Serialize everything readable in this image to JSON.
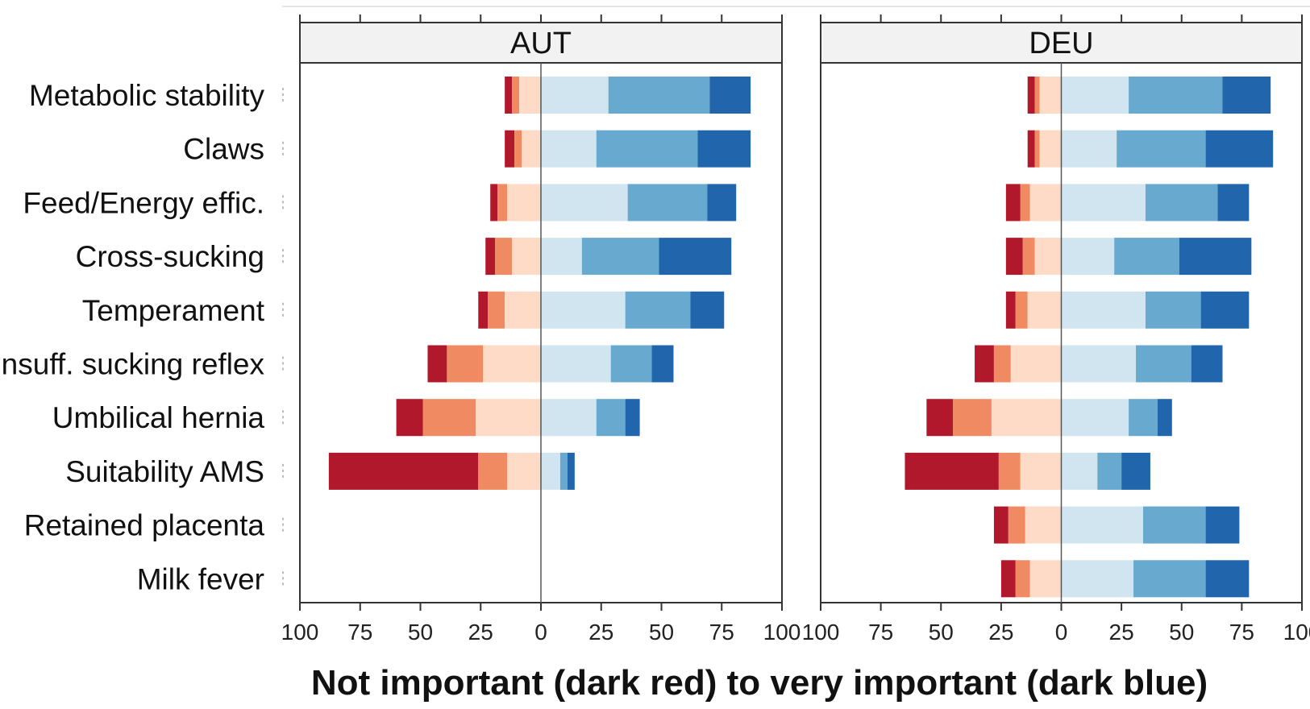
{
  "chart_data": {
    "type": "bar",
    "subtype": "diverging-stacked-likert",
    "xlabel": "Not important (dark red) to very important (dark blue)",
    "xlim": [
      -100,
      100
    ],
    "xticks": [
      -100,
      -75,
      -50,
      -25,
      0,
      25,
      50,
      75,
      100
    ],
    "xtick_labels": [
      "100",
      "75",
      "50",
      "25",
      "0",
      "25",
      "50",
      "75",
      "100"
    ],
    "categories": [
      "Metabolic stability",
      "Claws",
      "Feed/Energy effic.",
      "Cross-sucking",
      "Temperament",
      "Insuff. sucking reflex",
      "Umbilical hernia",
      "Suitability AMS",
      "Retained placenta",
      "Milk fever"
    ],
    "levels": [
      {
        "key": "l1",
        "color": "#b2182b"
      },
      {
        "key": "l2",
        "color": "#ef8a62"
      },
      {
        "key": "l3",
        "color": "#fddbc7"
      },
      {
        "key": "l4",
        "color": "#d1e5f0"
      },
      {
        "key": "l5",
        "color": "#67a9cf"
      },
      {
        "key": "l6",
        "color": "#2166ac"
      }
    ],
    "panels": [
      {
        "name": "AUT",
        "rows": [
          {
            "category": "Metabolic stability",
            "neg": [
              3,
              3,
              9
            ],
            "pos": [
              28,
              42,
              17
            ]
          },
          {
            "category": "Claws",
            "neg": [
              4,
              3,
              8
            ],
            "pos": [
              23,
              42,
              22
            ]
          },
          {
            "category": "Feed/Energy effic.",
            "neg": [
              3,
              4,
              14
            ],
            "pos": [
              36,
              33,
              12
            ]
          },
          {
            "category": "Cross-sucking",
            "neg": [
              4,
              7,
              12
            ],
            "pos": [
              17,
              32,
              30
            ]
          },
          {
            "category": "Temperament",
            "neg": [
              4,
              7,
              15
            ],
            "pos": [
              35,
              27,
              14
            ]
          },
          {
            "category": "Insuff. sucking reflex",
            "neg": [
              8,
              15,
              24
            ],
            "pos": [
              29,
              17,
              9
            ]
          },
          {
            "category": "Umbilical hernia",
            "neg": [
              11,
              22,
              27
            ],
            "pos": [
              23,
              12,
              6
            ]
          },
          {
            "category": "Suitability AMS",
            "neg": [
              62,
              12,
              14
            ],
            "pos": [
              8,
              3,
              3
            ]
          },
          {
            "category": "Retained placenta",
            "neg": [],
            "pos": []
          },
          {
            "category": "Milk fever",
            "neg": [],
            "pos": []
          }
        ]
      },
      {
        "name": "DEU",
        "rows": [
          {
            "category": "Metabolic stability",
            "neg": [
              3,
              2,
              9
            ],
            "pos": [
              28,
              39,
              20
            ]
          },
          {
            "category": "Claws",
            "neg": [
              3,
              2,
              9
            ],
            "pos": [
              23,
              37,
              28
            ]
          },
          {
            "category": "Feed/Energy effic.",
            "neg": [
              6,
              4,
              13
            ],
            "pos": [
              35,
              30,
              13
            ]
          },
          {
            "category": "Cross-sucking",
            "neg": [
              7,
              5,
              11
            ],
            "pos": [
              22,
              27,
              30
            ]
          },
          {
            "category": "Temperament",
            "neg": [
              4,
              5,
              14
            ],
            "pos": [
              35,
              23,
              20
            ]
          },
          {
            "category": "Insuff. sucking reflex",
            "neg": [
              8,
              7,
              21
            ],
            "pos": [
              31,
              23,
              13
            ]
          },
          {
            "category": "Umbilical hernia",
            "neg": [
              11,
              16,
              29
            ],
            "pos": [
              28,
              12,
              6
            ]
          },
          {
            "category": "Suitability AMS",
            "neg": [
              39,
              9,
              17
            ],
            "pos": [
              15,
              10,
              12
            ]
          },
          {
            "category": "Retained placenta",
            "neg": [
              6,
              7,
              15
            ],
            "pos": [
              34,
              26,
              14
            ]
          },
          {
            "category": "Milk fever",
            "neg": [
              6,
              6,
              13
            ],
            "pos": [
              30,
              30,
              18
            ]
          }
        ]
      }
    ]
  }
}
